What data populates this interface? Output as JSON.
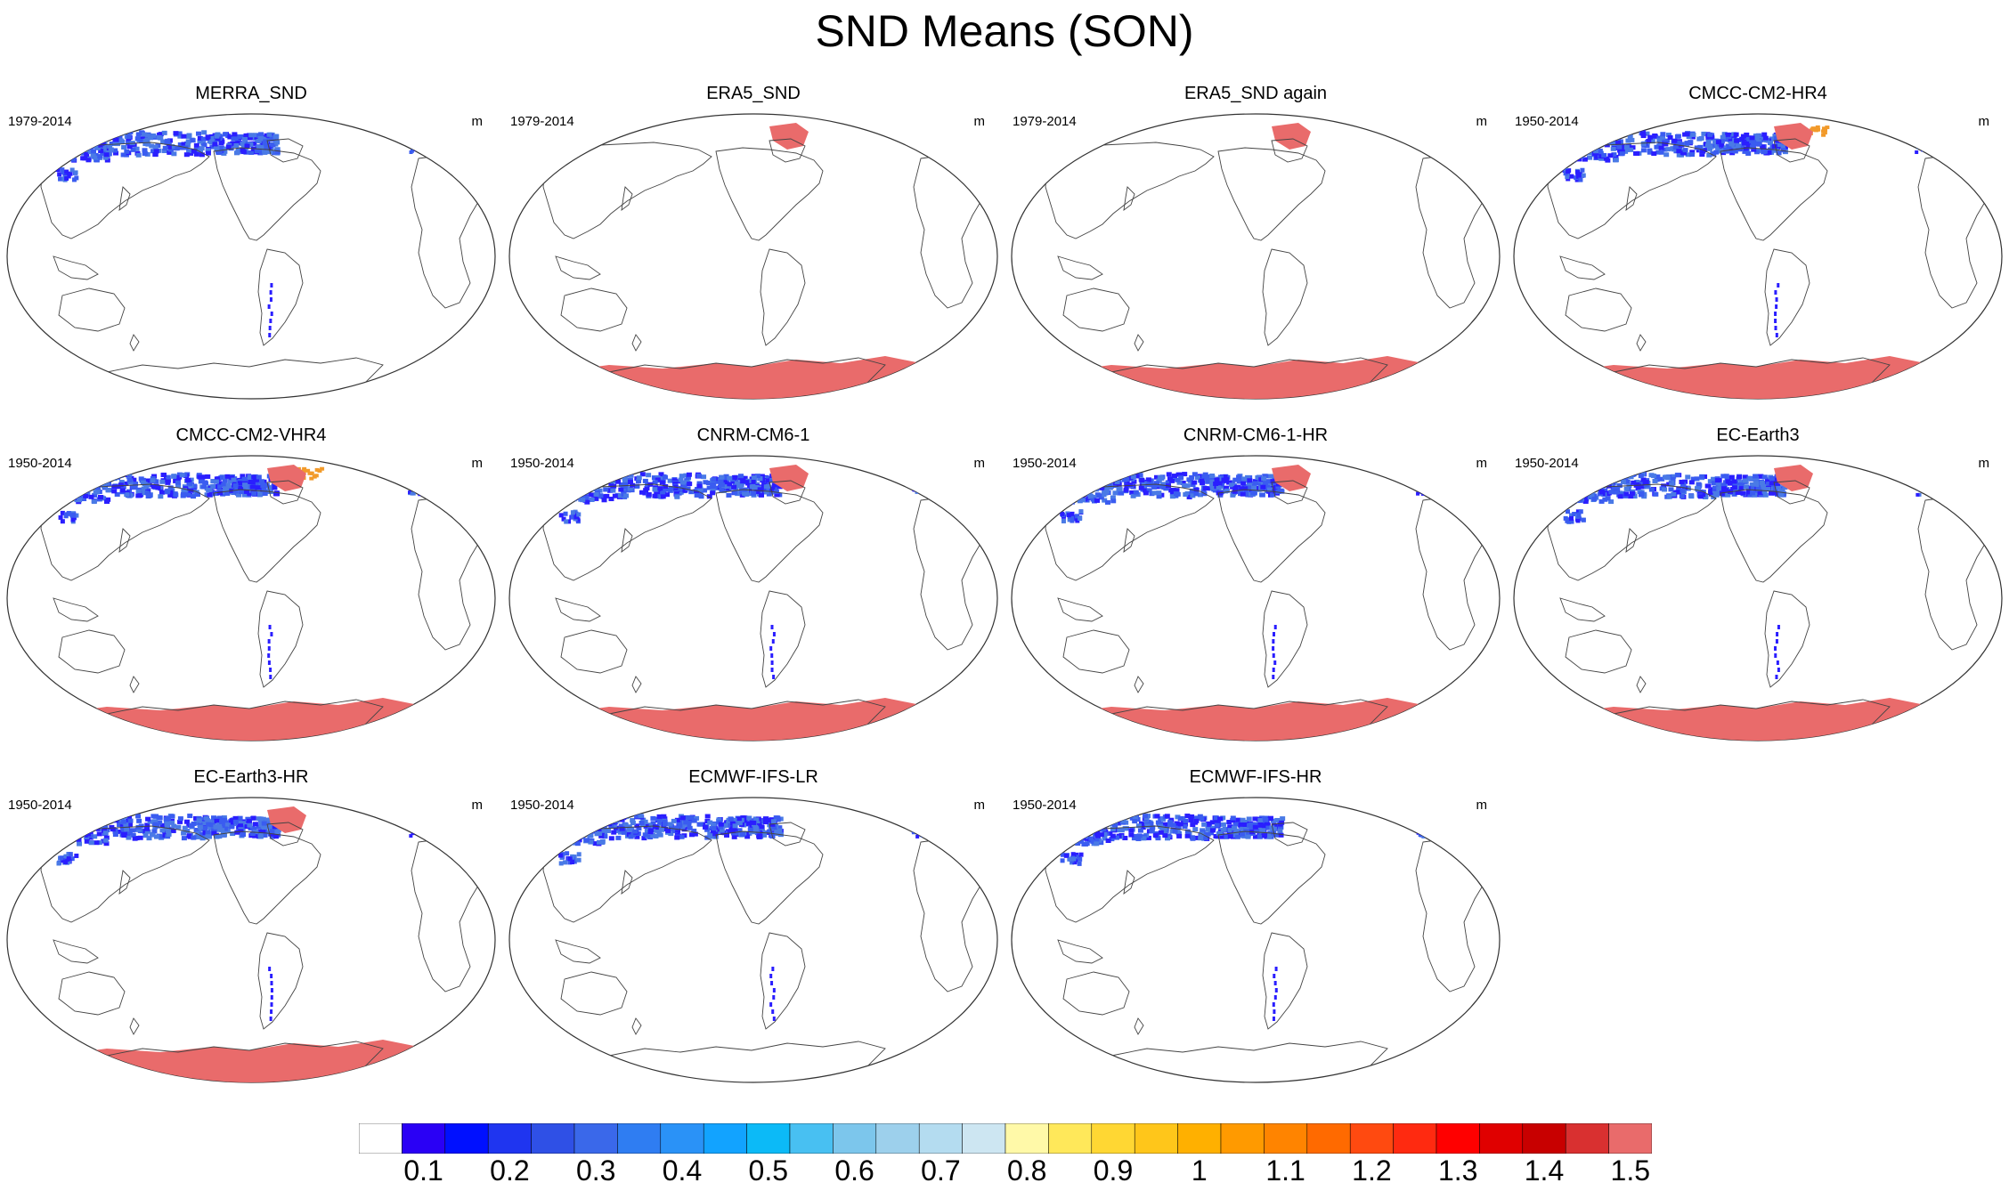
{
  "title": "SND Means (SON)",
  "colors": {
    "coast": "#444444",
    "border": "#333333",
    "ocean": "#ffffff",
    "snow_low": "#2a1eff",
    "snow_mid": "#3a5cf0",
    "snow_blue2": "#4a7ae6",
    "snow_high": "#e96b6b",
    "snow_orange": "#f29a2a"
  },
  "panels": [
    {
      "name": "MERRA_SND",
      "period": "1979-2014",
      "units": "m",
      "antarctica": false,
      "greenland": false,
      "snow_level": 0.1
    },
    {
      "name": "ERA5_SND",
      "period": "1979-2014",
      "units": "m",
      "antarctica": true,
      "greenland": true,
      "snow_level": 0
    },
    {
      "name": "ERA5_SND again",
      "period": "1979-2014",
      "units": "m",
      "antarctica": true,
      "greenland": true,
      "snow_level": 0
    },
    {
      "name": "CMCC-CM2-HR4",
      "period": "1950-2014",
      "units": "m",
      "antarctica": true,
      "greenland": true,
      "snow_level": 0.2
    },
    {
      "name": "CMCC-CM2-VHR4",
      "period": "1950-2014",
      "units": "m",
      "antarctica": true,
      "greenland": true,
      "snow_level": 0.2
    },
    {
      "name": "CNRM-CM6-1",
      "period": "1950-2014",
      "units": "m",
      "antarctica": true,
      "greenland": true,
      "snow_level": 0.1
    },
    {
      "name": "CNRM-CM6-1-HR",
      "period": "1950-2014",
      "units": "m",
      "antarctica": true,
      "greenland": true,
      "snow_level": 0.1
    },
    {
      "name": "EC-Earth3",
      "period": "1950-2014",
      "units": "m",
      "antarctica": true,
      "greenland": true,
      "snow_level": 0.1
    },
    {
      "name": "EC-Earth3-HR",
      "period": "1950-2014",
      "units": "m",
      "antarctica": true,
      "greenland": true,
      "snow_level": 0.1
    },
    {
      "name": "ECMWF-IFS-LR",
      "period": "1950-2014",
      "units": "m",
      "antarctica": false,
      "greenland": false,
      "snow_level": 0.1
    },
    {
      "name": "ECMWF-IFS-HR",
      "period": "1950-2014",
      "units": "m",
      "antarctica": false,
      "greenland": false,
      "snow_level": 0.1
    }
  ],
  "colorbar": {
    "colors": [
      "#ffffff",
      "#2a00f5",
      "#0010ff",
      "#1f35f0",
      "#2f50e6",
      "#3a68ea",
      "#2f7df2",
      "#2a92f7",
      "#12a3ff",
      "#0cbaf7",
      "#48c0f2",
      "#7cc6ec",
      "#9dd0ec",
      "#b4dcf0",
      "#cde6f2",
      "#fff9a8",
      "#ffe85a",
      "#ffd733",
      "#ffc61a",
      "#ffb000",
      "#ff9a00",
      "#ff8400",
      "#ff6a00",
      "#ff4a10",
      "#ff2a10",
      "#ff0000",
      "#e00000",
      "#c80000",
      "#d93030",
      "#e96b6b"
    ],
    "labels": [
      "0.1",
      "0.2",
      "0.3",
      "0.4",
      "0.5",
      "0.6",
      "0.7",
      "0.8",
      "0.9",
      "1",
      "1.1",
      "1.2",
      "1.3",
      "1.4",
      "1.5"
    ]
  }
}
